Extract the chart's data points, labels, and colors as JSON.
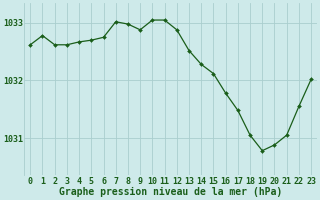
{
  "x": [
    0,
    1,
    2,
    3,
    4,
    5,
    6,
    7,
    8,
    9,
    10,
    11,
    12,
    13,
    14,
    15,
    16,
    17,
    18,
    19,
    20,
    21,
    22,
    23
  ],
  "y": [
    1032.62,
    1032.78,
    1032.62,
    1032.62,
    1032.67,
    1032.7,
    1032.75,
    1033.02,
    1032.98,
    1032.88,
    1033.05,
    1033.05,
    1032.88,
    1032.52,
    1032.28,
    1032.12,
    1031.78,
    1031.48,
    1031.05,
    1030.78,
    1030.88,
    1031.05,
    1031.55,
    1032.02
  ],
  "line_color": "#1a5e1a",
  "marker": "D",
  "marker_size": 2.0,
  "linewidth": 0.9,
  "background_color": "#ceeaea",
  "grid_color": "#aacece",
  "xlabel": "Graphe pression niveau de la mer (hPa)",
  "xlabel_fontsize": 7.0,
  "xlabel_color": "#1a5e1a",
  "tick_color": "#1a5e1a",
  "tick_fontsize": 6.0,
  "ytick_labels": [
    "1031",
    "1032",
    "1033"
  ],
  "ytick_values": [
    1031,
    1032,
    1033
  ],
  "ylim": [
    1030.35,
    1033.35
  ],
  "xlim": [
    -0.5,
    23.5
  ]
}
